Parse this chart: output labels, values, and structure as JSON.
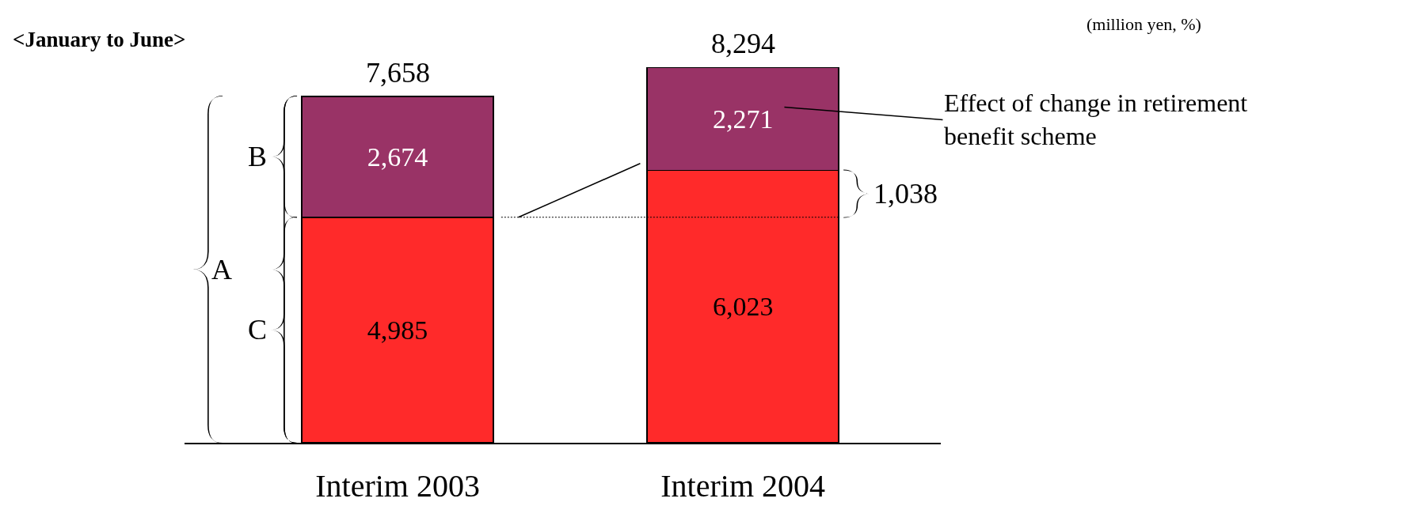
{
  "chart_data": {
    "type": "bar",
    "stacked": true,
    "categories": [
      "Interim 2003",
      "Interim 2004"
    ],
    "series": [
      {
        "name": "C",
        "color": "#ff2a2a",
        "values": [
          4985,
          6023
        ],
        "value_labels": [
          "4,985",
          "6,023"
        ]
      },
      {
        "name": "B",
        "color": "#993366",
        "values": [
          2674,
          2271
        ],
        "value_labels": [
          "2,674",
          "2,271"
        ]
      }
    ],
    "totals": [
      "7,658",
      "8,294"
    ],
    "annotations": [
      "<January to June>",
      "(million yen, %)",
      "Effect of change in retirement benefit scheme",
      "1,038",
      "A"
    ],
    "legend": false,
    "grid": false
  }
}
